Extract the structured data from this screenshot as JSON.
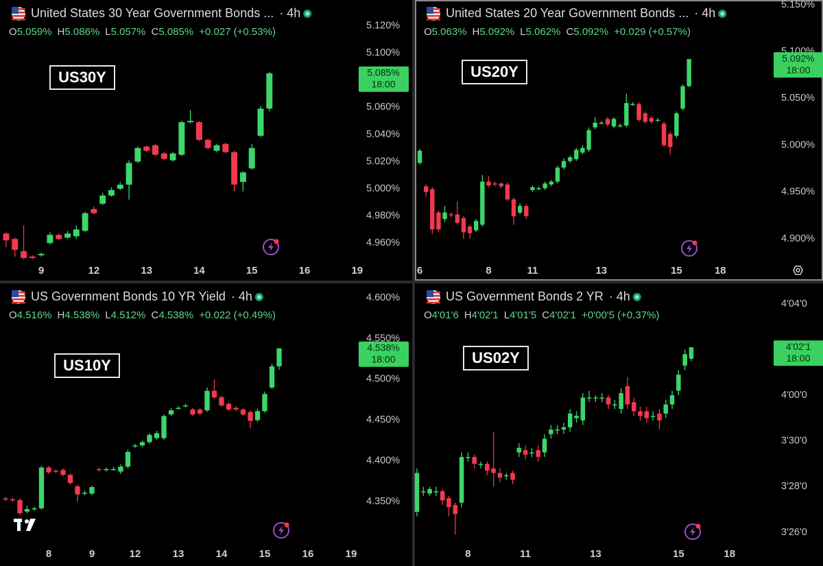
{
  "chart_data": [
    {
      "type": "candlestick",
      "title": "United States 30 Year Government Bonds ...",
      "interval": "· 4h",
      "badge": "US30Y",
      "fields": [
        {
          "label": "O",
          "value": "5.059%"
        },
        {
          "label": "H",
          "value": "5.086%"
        },
        {
          "label": "L",
          "value": "5.057%"
        },
        {
          "label": "C",
          "value": "5.085%"
        }
      ],
      "change": "+0.027 (+0.53%)",
      "last_label": "5.085%",
      "last_time": "18:00",
      "up_color": "#3cd66a",
      "down_color": "#f23a4e",
      "ylim": [
        4.947,
        5.139
      ],
      "yticks": [
        {
          "value": 5.12,
          "label": "5.120%"
        },
        {
          "value": 5.1,
          "label": "5.100%"
        },
        {
          "value": 5.06,
          "label": "5.060%"
        },
        {
          "value": 5.04,
          "label": "5.040%"
        },
        {
          "value": 5.02,
          "label": "5.020%"
        },
        {
          "value": 5.0,
          "label": "5.000%"
        },
        {
          "value": 4.98,
          "label": "4.980%"
        },
        {
          "value": 4.96,
          "label": "4.960%"
        }
      ],
      "xlim": [
        -0.7,
        40.1
      ],
      "xticks": [
        {
          "value": 4,
          "label": "9"
        },
        {
          "value": 10,
          "label": "12"
        },
        {
          "value": 16,
          "label": "13"
        },
        {
          "value": 22,
          "label": "14"
        },
        {
          "value": 28,
          "label": "15"
        },
        {
          "value": 34,
          "label": "16"
        },
        {
          "value": 40,
          "label": "19"
        }
      ],
      "open": [
        4.967,
        4.963,
        4.954,
        4.95,
        4.951,
        4.96,
        4.966,
        4.964,
        4.965,
        4.969,
        4.985,
        4.989,
        4.995,
        5.0,
        5.003,
        5.02,
        5.031,
        5.032,
        5.026,
        5.021,
        5.025,
        5.049,
        5.049,
        5.036,
        5.028,
        5.033,
        5.027,
        5.005,
        5.015,
        5.039,
        5.059
      ],
      "high": [
        4.968,
        4.964,
        4.973,
        4.951,
        4.953,
        4.968,
        4.967,
        4.969,
        4.973,
        4.983,
        4.987,
        4.997,
        5.001,
        5.005,
        5.021,
        5.031,
        5.032,
        5.033,
        5.027,
        5.027,
        5.05,
        5.058,
        5.05,
        5.037,
        5.033,
        5.034,
        5.028,
        5.013,
        5.033,
        5.061,
        5.086
      ],
      "low": [
        4.957,
        4.95,
        4.948,
        4.948,
        4.95,
        4.959,
        4.962,
        4.963,
        4.963,
        4.968,
        4.981,
        4.988,
        4.994,
        4.999,
        4.992,
        5.019,
        5.027,
        5.024,
        5.021,
        5.02,
        5.024,
        5.048,
        5.035,
        5.029,
        5.027,
        5.026,
        4.998,
        4.998,
        5.014,
        5.038,
        5.057
      ],
      "close": [
        4.962,
        4.955,
        4.949,
        4.949,
        4.952,
        4.966,
        4.963,
        4.967,
        4.97,
        4.982,
        4.982,
        4.995,
        4.999,
        5.003,
        5.019,
        5.03,
        5.028,
        5.025,
        5.022,
        5.026,
        5.049,
        5.05,
        5.036,
        5.03,
        5.032,
        5.027,
        5.003,
        5.012,
        5.03,
        5.059,
        5.085
      ]
    },
    {
      "type": "candlestick",
      "title": "United States 20 Year Government Bonds ...",
      "interval": "· 4h",
      "badge": "US20Y",
      "fields": [
        {
          "label": "O",
          "value": "5.063%"
        },
        {
          "label": "H",
          "value": "5.092%"
        },
        {
          "label": "L",
          "value": "5.062%"
        },
        {
          "label": "C",
          "value": "5.092%"
        }
      ],
      "change": "+0.029 (+0.57%)",
      "last_label": "5.092%",
      "last_time": "18:00",
      "up_color": "#3cd66a",
      "down_color": "#f23a4e",
      "ylim": [
        4.8765,
        5.1551
      ],
      "yticks": [
        {
          "value": 5.15,
          "label": "5.150%"
        },
        {
          "value": 5.1,
          "label": "5.100%"
        },
        {
          "value": 5.05,
          "label": "5.050%"
        },
        {
          "value": 5.0,
          "label": "5.000%"
        },
        {
          "value": 4.95,
          "label": "4.950%"
        },
        {
          "value": 4.9,
          "label": "4.900%"
        }
      ],
      "xlim": [
        -0.77,
        56.4
      ],
      "xticks": [
        {
          "value": 0,
          "label": "6"
        },
        {
          "value": 11,
          "label": "8"
        },
        {
          "value": 18,
          "label": "11"
        },
        {
          "value": 29,
          "label": "13"
        },
        {
          "value": 41,
          "label": "15"
        },
        {
          "value": 48,
          "label": "18"
        }
      ],
      "open": [
        4.981,
        4.956,
        4.953,
        4.928,
        4.921,
        4.926,
        4.926,
        4.922,
        4.913,
        4.909,
        4.915,
        4.961,
        4.959,
        4.959,
        4.958,
        4.942,
        4.928,
        4.935,
        4.952,
        4.954,
        4.954,
        4.958,
        4.961,
        4.976,
        4.983,
        4.985,
        4.992,
        4.995,
        5.019,
        5.024,
        5.028,
        5.02,
        5.021,
        5.021,
        5.044,
        5.044,
        5.034,
        5.029,
        5.027,
        5.023,
        5.012,
        5.01,
        5.039,
        5.063
      ],
      "high": [
        4.996,
        4.958,
        4.955,
        4.93,
        4.935,
        4.928,
        4.94,
        4.924,
        4.915,
        4.921,
        4.968,
        4.967,
        4.961,
        4.96,
        4.96,
        4.944,
        4.938,
        4.937,
        4.957,
        4.956,
        4.961,
        4.963,
        4.978,
        4.986,
        4.989,
        4.997,
        5.0,
        5.019,
        5.03,
        5.026,
        5.03,
        5.03,
        5.023,
        5.055,
        5.046,
        5.046,
        5.036,
        5.031,
        5.029,
        5.025,
        5.014,
        5.036,
        5.065,
        5.092
      ],
      "low": [
        4.979,
        4.945,
        4.905,
        4.907,
        4.918,
        4.923,
        4.915,
        4.9,
        4.9,
        4.907,
        4.913,
        4.955,
        4.956,
        4.954,
        4.94,
        4.915,
        4.926,
        4.921,
        4.95,
        4.952,
        4.952,
        4.956,
        4.959,
        4.974,
        4.981,
        4.983,
        4.99,
        4.993,
        5.017,
        5.022,
        5.02,
        5.018,
        5.019,
        5.019,
        5.042,
        5.025,
        5.023,
        5.023,
        5.025,
        4.998,
        4.99,
        5.008,
        5.037,
        5.062
      ],
      "close": [
        4.994,
        4.95,
        4.91,
        4.91,
        4.928,
        4.925,
        4.917,
        4.907,
        4.906,
        4.919,
        4.961,
        4.957,
        4.958,
        4.956,
        4.942,
        4.924,
        4.935,
        4.924,
        4.955,
        4.954,
        4.959,
        4.961,
        4.976,
        4.983,
        4.987,
        4.995,
        4.997,
        5.016,
        5.024,
        5.024,
        5.022,
        5.028,
        5.021,
        5.045,
        5.044,
        5.027,
        5.025,
        5.025,
        5.027,
        5.0,
        4.998,
        5.034,
        5.063,
        5.092
      ]
    },
    {
      "type": "candlestick",
      "title": "US Government Bonds 10 YR Yield",
      "interval": "· 4h",
      "badge": "US10Y",
      "fields": [
        {
          "label": "O",
          "value": "4.516%"
        },
        {
          "label": "H",
          "value": "4.538%"
        },
        {
          "label": "L",
          "value": "4.512%"
        },
        {
          "label": "C",
          "value": "4.538%"
        }
      ],
      "change": "+0.022 (+0.49%)",
      "last_label": "4.538%",
      "last_time": "18:00",
      "up_color": "#3cd66a",
      "down_color": "#f23a4e",
      "ylim": [
        4.2982,
        4.6176
      ],
      "yticks": [
        {
          "value": 4.6,
          "label": "4.600%"
        },
        {
          "value": 4.55,
          "label": "4.550%"
        },
        {
          "value": 4.5,
          "label": "4.500%"
        },
        {
          "value": 4.45,
          "label": "4.450%"
        },
        {
          "value": 4.4,
          "label": "4.400%"
        },
        {
          "value": 4.35,
          "label": "4.350%"
        }
      ],
      "xlim": [
        -0.76,
        48.95
      ],
      "xticks": [
        {
          "value": 6,
          "label": "8"
        },
        {
          "value": 12,
          "label": "9"
        },
        {
          "value": 18,
          "label": "12"
        },
        {
          "value": 24,
          "label": "13"
        },
        {
          "value": 30,
          "label": "14"
        },
        {
          "value": 36,
          "label": "15"
        },
        {
          "value": 42,
          "label": "16"
        },
        {
          "value": 48,
          "label": "19"
        }
      ],
      "open": [
        4.354,
        4.353,
        4.352,
        4.338,
        4.341,
        4.342,
        4.392,
        4.388,
        4.389,
        4.383,
        4.369,
        4.36,
        4.36,
        4.39,
        4.389,
        4.39,
        4.387,
        4.393,
        4.418,
        4.419,
        4.423,
        4.428,
        4.428,
        4.457,
        4.465,
        4.468,
        4.463,
        4.463,
        4.462,
        4.486,
        4.478,
        4.47,
        4.465,
        4.463,
        4.46,
        4.45,
        4.461,
        4.49,
        4.516
      ],
      "high": [
        4.356,
        4.355,
        4.354,
        4.345,
        4.344,
        4.394,
        4.394,
        4.39,
        4.391,
        4.385,
        4.371,
        4.364,
        4.37,
        4.392,
        4.392,
        4.393,
        4.396,
        4.414,
        4.421,
        4.425,
        4.434,
        4.437,
        4.457,
        4.465,
        4.467,
        4.47,
        4.465,
        4.465,
        4.49,
        4.5,
        4.48,
        4.472,
        4.467,
        4.465,
        4.462,
        4.464,
        4.485,
        4.519,
        4.538
      ],
      "low": [
        4.351,
        4.35,
        4.334,
        4.336,
        4.339,
        4.34,
        4.384,
        4.385,
        4.381,
        4.371,
        4.35,
        4.358,
        4.358,
        4.387,
        4.387,
        4.388,
        4.384,
        4.391,
        4.416,
        4.417,
        4.421,
        4.426,
        4.426,
        4.455,
        4.463,
        4.466,
        4.455,
        4.456,
        4.46,
        4.476,
        4.466,
        4.461,
        4.461,
        4.455,
        4.44,
        4.448,
        4.459,
        4.488,
        4.512
      ],
      "close": [
        4.353,
        4.352,
        4.336,
        4.341,
        4.342,
        4.392,
        4.386,
        4.387,
        4.383,
        4.373,
        4.359,
        4.361,
        4.368,
        4.389,
        4.39,
        4.39,
        4.393,
        4.411,
        4.419,
        4.423,
        4.432,
        4.434,
        4.455,
        4.462,
        4.465,
        4.468,
        4.457,
        4.458,
        4.486,
        4.478,
        4.468,
        4.463,
        4.463,
        4.457,
        4.449,
        4.461,
        4.482,
        4.516,
        4.538
      ]
    },
    {
      "type": "candlestick",
      "title": "US Government Bonds 2 YR",
      "interval": "· 4h",
      "badge": "US02Y",
      "fields": [
        {
          "label": "O",
          "value": "4'01'6"
        },
        {
          "label": "H",
          "value": "4'02'1"
        },
        {
          "label": "L",
          "value": "4'01'5"
        },
        {
          "label": "C",
          "value": "4'02'1"
        }
      ],
      "change": "+0'00'5 (+0.37%)",
      "last_label": "4'02'1",
      "last_time": "18:00",
      "up_color": "#3cd66a",
      "down_color": "#f23a4e",
      "ylim": [
        121.49,
        132.9
      ],
      "yticks": [
        {
          "value": 132,
          "label": "4'04'0"
        },
        {
          "value": 128,
          "label": "4'00'0"
        },
        {
          "value": 126,
          "label": "3'30'0"
        },
        {
          "value": 124,
          "label": "3'28'0"
        },
        {
          "value": 122,
          "label": "3'26'0"
        }
      ],
      "xlim": [
        -0.32,
        55.8
      ],
      "xticks": [
        {
          "value": 8,
          "label": "8"
        },
        {
          "value": 17,
          "label": "11"
        },
        {
          "value": 28,
          "label": "13"
        },
        {
          "value": 41,
          "label": "15"
        },
        {
          "value": 49,
          "label": "18"
        }
      ],
      "open": [
        122.9,
        123.8,
        123.7,
        123.8,
        123.8,
        123.5,
        123.2,
        123.3,
        125.3,
        125.3,
        125.0,
        125.0,
        124.8,
        124.6,
        124.5,
        124.6,
        125.5,
        125.6,
        125.5,
        125.6,
        125.5,
        126.3,
        126.5,
        126.5,
        126.6,
        127.0,
        126.9,
        127.9,
        127.9,
        127.9,
        127.9,
        127.6,
        127.4,
        128.4,
        127.7,
        127.3,
        127.3,
        127.1,
        127.2,
        127.2,
        127.6,
        128.2,
        129.3,
        129.6
      ],
      "high": [
        124.8,
        124.0,
        124.0,
        124.0,
        123.9,
        123.6,
        123.3,
        125.5,
        125.5,
        125.4,
        125.1,
        125.1,
        126.4,
        124.8,
        124.6,
        124.7,
        125.9,
        125.8,
        125.7,
        125.8,
        126.3,
        126.7,
        126.7,
        126.8,
        127.4,
        127.3,
        128.1,
        128.2,
        128.0,
        128.1,
        128.0,
        127.8,
        128.3,
        128.8,
        127.9,
        127.5,
        127.5,
        127.3,
        127.4,
        127.8,
        128.2,
        129.1,
        130.0,
        130.1
      ],
      "low": [
        122.7,
        123.6,
        123.6,
        123.6,
        123.2,
        122.7,
        121.9,
        123.1,
        125.1,
        124.8,
        124.8,
        124.5,
        124.0,
        124.2,
        124.3,
        124.1,
        125.3,
        125.2,
        125.3,
        125.1,
        125.3,
        126.1,
        126.3,
        126.3,
        126.4,
        126.8,
        126.7,
        127.7,
        127.7,
        127.7,
        127.4,
        127.4,
        127.2,
        127.4,
        127.1,
        126.9,
        126.8,
        126.9,
        126.5,
        127.0,
        127.4,
        128.0,
        129.1,
        129.5
      ],
      "close": [
        124.6,
        123.8,
        123.9,
        123.8,
        123.4,
        123.1,
        122.8,
        125.3,
        125.3,
        125.0,
        125.0,
        124.7,
        124.6,
        124.4,
        124.5,
        124.3,
        125.7,
        125.4,
        125.5,
        125.3,
        126.1,
        126.5,
        126.5,
        126.6,
        127.2,
        127.1,
        127.9,
        127.9,
        127.9,
        127.9,
        127.6,
        127.6,
        128.1,
        127.6,
        127.3,
        127.1,
        127.0,
        127.1,
        126.9,
        127.6,
        128.0,
        128.9,
        129.8,
        130.1
      ]
    }
  ]
}
